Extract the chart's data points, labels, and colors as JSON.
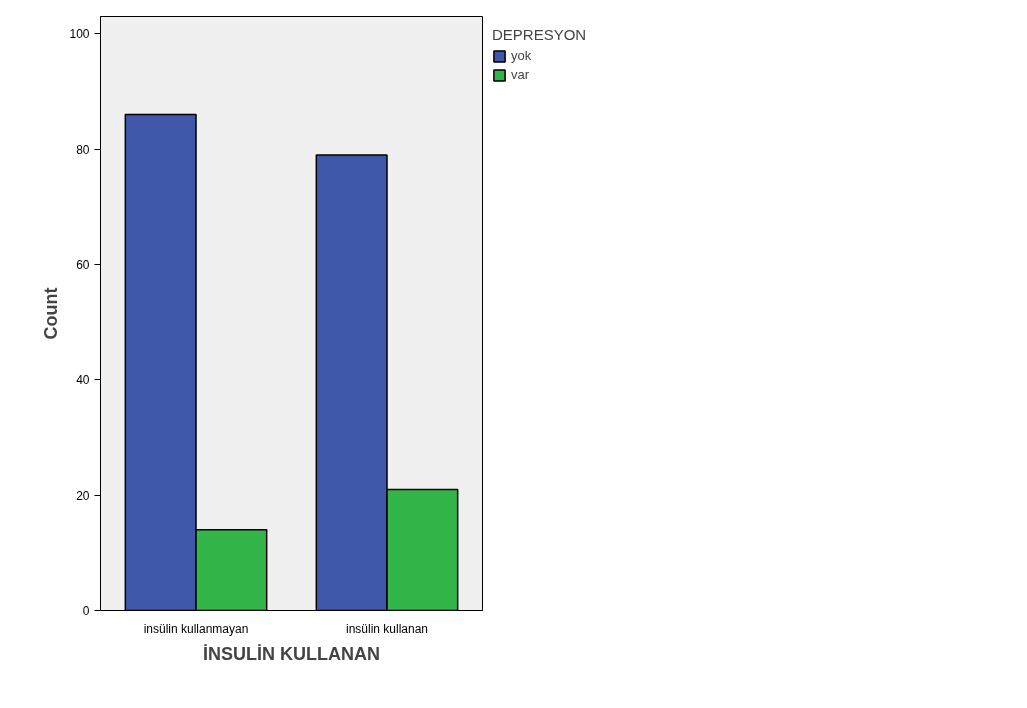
{
  "chart_data": {
    "type": "bar",
    "xlabel": "İNSULİN KULLANAN",
    "ylabel": "Count",
    "legend_title": "DEPRESYON",
    "categories": [
      "insülin kullanmayan",
      "insülin kullanan"
    ],
    "series": [
      {
        "name": "yok",
        "color": "#3f58aa",
        "values": [
          86,
          79
        ]
      },
      {
        "name": "var",
        "color": "#33b54a",
        "values": [
          14,
          21
        ]
      }
    ],
    "ylim": [
      0,
      103
    ],
    "yticks": [
      0,
      20,
      40,
      60,
      80,
      100
    ],
    "grid": false,
    "legend": "top right"
  }
}
